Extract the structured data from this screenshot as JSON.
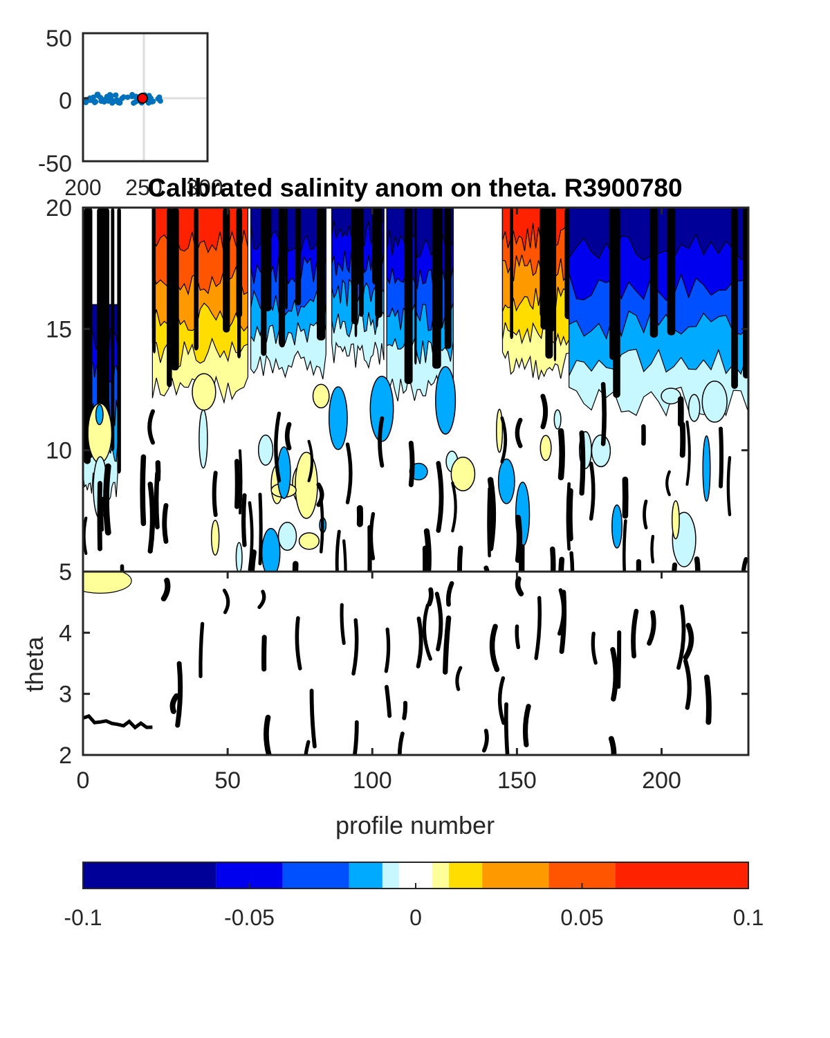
{
  "title": "Calibrated salinity anom on theta. R3900780",
  "inset_map": {
    "x_ticks": [
      "200",
      "250",
      "300"
    ],
    "y_ticks": [
      "50",
      "0",
      "-50"
    ],
    "track_color": "#0072BD",
    "marker_color": "#FF0000"
  },
  "chart_data": {
    "type": "heatmap",
    "title": "Calibrated salinity anom on theta. R3900780",
    "xlabel": "profile number",
    "ylabel": "theta",
    "xlim": [
      0,
      230
    ],
    "ylim_upper_panel": [
      5,
      20
    ],
    "ylim_lower_panel": [
      2,
      5
    ],
    "x_ticks": [
      "0",
      "50",
      "100",
      "150",
      "200"
    ],
    "y_ticks_upper": [
      "20",
      "15",
      "10",
      "5"
    ],
    "y_ticks_lower": [
      "4",
      "3",
      "2"
    ],
    "colorbar": {
      "range": [
        -0.1,
        0.1
      ],
      "tick_labels": [
        "-0.1",
        "-0.05",
        "0",
        "0.05",
        "0.1"
      ],
      "levels": [
        -0.1,
        -0.06,
        -0.04,
        -0.02,
        -0.01,
        -0.005,
        0.005,
        0.01,
        0.02,
        0.04,
        0.06,
        0.1
      ],
      "colors": [
        "#000099",
        "#0000EE",
        "#0050FF",
        "#00AAFF",
        "#C8F8FF",
        "#FFFFFF",
        "#FFFF99",
        "#FFDD00",
        "#FF9900",
        "#FF5500",
        "#FF2200"
      ]
    },
    "anomaly_bands_upper": [
      {
        "x": [
          0,
          12
        ],
        "sign": "neg",
        "theta_top": 16.0,
        "theta_bottom": 8.5
      },
      {
        "x": [
          24,
          57
        ],
        "sign": "pos",
        "theta_top": 20.0,
        "theta_bottom": 12.5
      },
      {
        "x": [
          58,
          84
        ],
        "sign": "neg",
        "theta_top": 20.0,
        "theta_bottom": 13.5
      },
      {
        "x": [
          86,
          104
        ],
        "sign": "neg",
        "theta_top": 20.0,
        "theta_bottom": 14.0
      },
      {
        "x": [
          105,
          128
        ],
        "sign": "neg",
        "theta_top": 20.0,
        "theta_bottom": 12.5
      },
      {
        "x": [
          145,
          168
        ],
        "sign": "pos",
        "theta_top": 20.0,
        "theta_bottom": 13.5
      },
      {
        "x": [
          168,
          230
        ],
        "sign": "neg",
        "theta_top": 20.0,
        "theta_bottom": 12.0
      }
    ]
  }
}
